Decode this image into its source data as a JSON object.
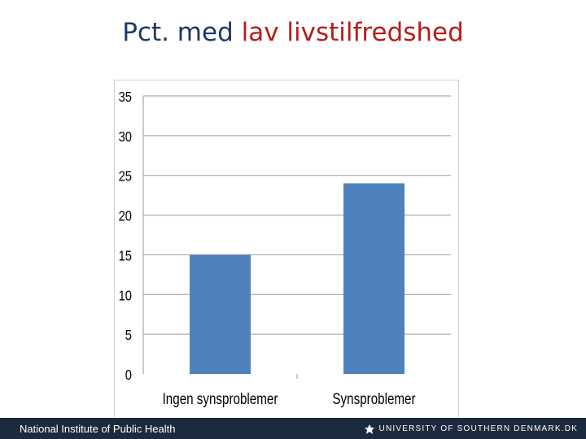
{
  "slide": {
    "title_part1": "Pct. med ",
    "title_part2": "lav livstilfredshed",
    "title_color1": "#1f3864",
    "title_color2": "#b71c1c"
  },
  "chart_data": {
    "type": "bar",
    "categories": [
      "Ingen synsproblemer",
      "Synsproblemer"
    ],
    "values": [
      15,
      24
    ],
    "ylim": [
      0,
      35
    ],
    "yticks": [
      0,
      5,
      10,
      15,
      20,
      25,
      30,
      35
    ],
    "title": "",
    "xlabel": "",
    "ylabel": "",
    "grid": true,
    "bar_color": "#4f81bd",
    "legend": "none"
  },
  "footer": {
    "left_text": "National Institute of Public Health",
    "right_logo_icon": "sdu-logo-icon",
    "right_text": "UNIVERSITY OF SOUTHERN DENMARK.DK"
  }
}
